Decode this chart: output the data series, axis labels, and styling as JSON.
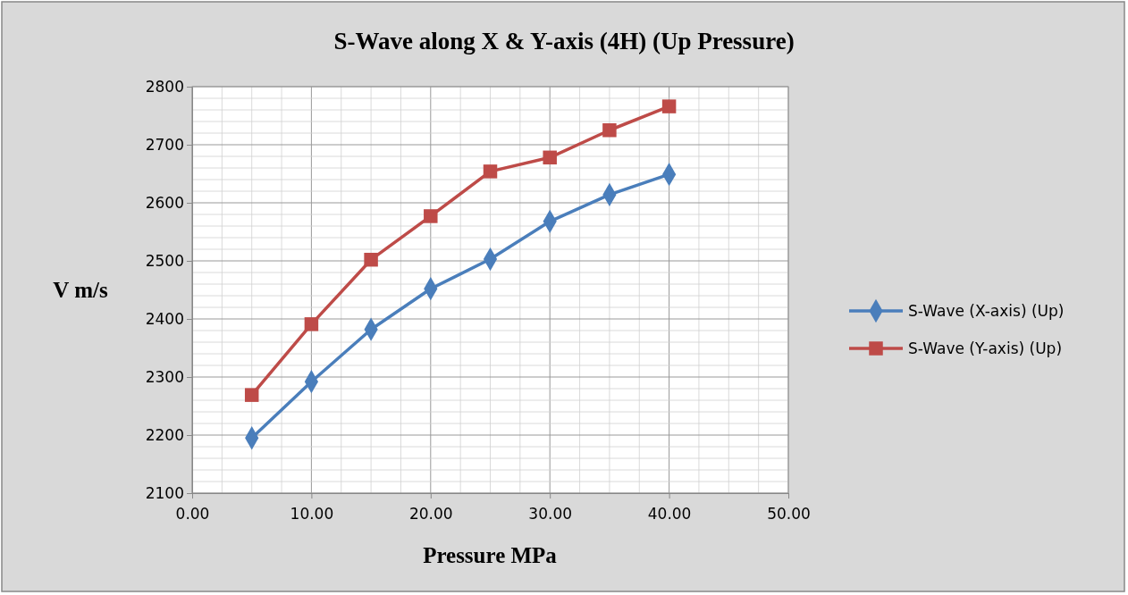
{
  "chart_data": {
    "type": "line",
    "title": "S-Wave along X & Y-axis (4H) (Up Pressure)",
    "xlabel": "Pressure MPa",
    "ylabel": "V m/s",
    "x": [
      5,
      10,
      15,
      20,
      25,
      30,
      35,
      40
    ],
    "series": [
      {
        "name": "S-Wave (X-axis) (Up)",
        "color": "#4a7ebb",
        "marker": "diamond",
        "values": [
          2195,
          2292,
          2382,
          2452,
          2503,
          2568,
          2614,
          2649
        ]
      },
      {
        "name": "S-Wave (Y-axis) (Up)",
        "color": "#be4b48",
        "marker": "square",
        "values": [
          2269,
          2391,
          2502,
          2577,
          2654,
          2678,
          2725,
          2766
        ]
      }
    ],
    "xlim": [
      0,
      50
    ],
    "xticks": [
      {
        "value": 0,
        "label": "0.00"
      },
      {
        "value": 10,
        "label": "10.00"
      },
      {
        "value": 20,
        "label": "20.00"
      },
      {
        "value": 30,
        "label": "30.00"
      },
      {
        "value": 40,
        "label": "40.00"
      },
      {
        "value": 50,
        "label": "50.00"
      }
    ],
    "ylim": [
      2100,
      2800
    ],
    "yticks": [
      2100,
      2200,
      2300,
      2400,
      2500,
      2600,
      2700,
      2800
    ],
    "grid": true,
    "legend": "right",
    "line_style": "solid"
  }
}
